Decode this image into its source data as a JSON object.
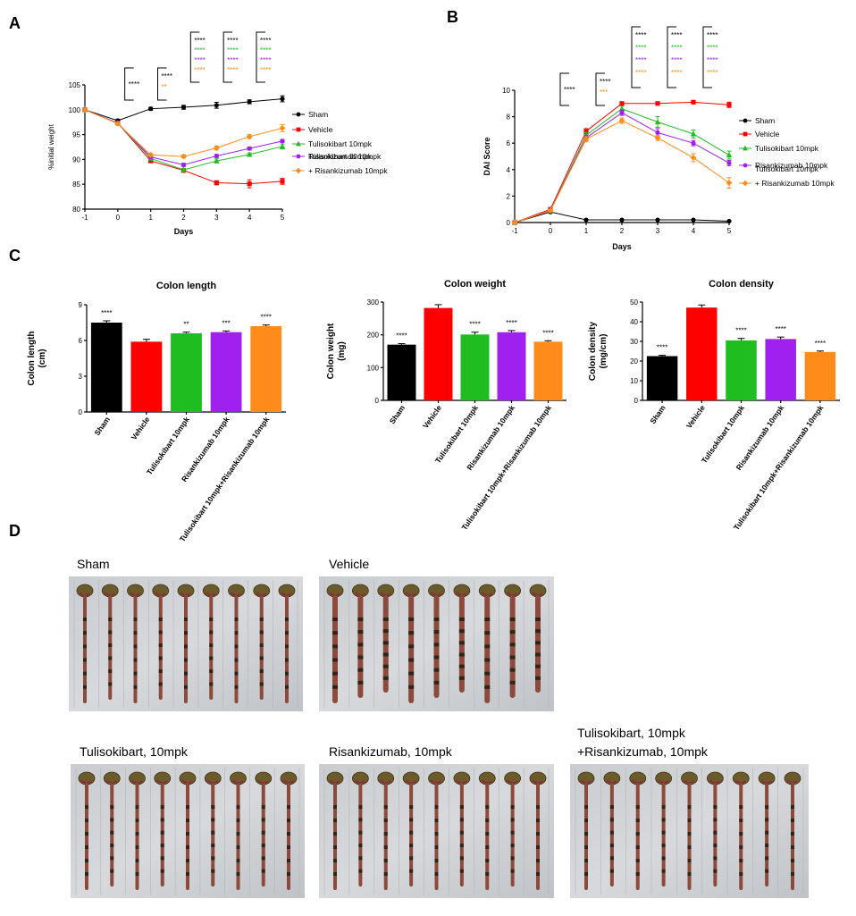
{
  "panels": {
    "a": "A",
    "b": "B",
    "c": "C",
    "d": "D"
  },
  "colors": {
    "sham": "#000000",
    "vehicle": "#ff0000",
    "tulisokibart": "#1fbd1f",
    "risankizumab": "#a020f0",
    "combo": "#ff8c1a"
  },
  "chart_data": [
    {
      "id": "A",
      "type": "line",
      "title": "",
      "xlabel": "Days",
      "ylabel": "%initial weight",
      "x": [
        -1,
        0,
        1,
        2,
        3,
        4,
        5
      ],
      "xlim": [
        -1,
        5
      ],
      "ylim": [
        80,
        105
      ],
      "yticks": [
        80,
        85,
        90,
        95,
        100,
        105
      ],
      "series": [
        {
          "name": "Sham",
          "color_key": "sham",
          "marker": "circle",
          "x": [
            -1,
            0,
            1,
            2,
            3,
            4,
            5
          ],
          "values": [
            100,
            97.8,
            100.2,
            100.5,
            100.9,
            101.6,
            102.2
          ],
          "err": [
            0,
            0.3,
            0.3,
            0.4,
            0.6,
            0.4,
            0.6
          ]
        },
        {
          "name": "Vehicle",
          "color_key": "vehicle",
          "marker": "square",
          "x": [
            -1,
            0,
            1,
            2,
            3,
            4,
            5
          ],
          "values": [
            100,
            97.3,
            89.7,
            87.8,
            85.3,
            85.1,
            85.6
          ],
          "err": [
            0,
            0.3,
            0.3,
            0.4,
            0.4,
            0.8,
            0.6
          ]
        },
        {
          "name": "Tulisokibart 10mpk",
          "color_key": "tulisokibart",
          "marker": "triangle",
          "x": [
            -1,
            0,
            1,
            2,
            3,
            4,
            5
          ],
          "values": [
            100,
            97.3,
            90.2,
            87.9,
            89.7,
            91.0,
            92.6
          ],
          "err": [
            0,
            0.3,
            0.3,
            0.3,
            0.4,
            0.3,
            0.5
          ]
        },
        {
          "name": "Risankizumab 10mpk",
          "color_key": "risankizumab",
          "marker": "circle",
          "x": [
            -1,
            0,
            1,
            2,
            3,
            4,
            5
          ],
          "values": [
            100,
            97.3,
            90.5,
            88.9,
            90.7,
            92.2,
            93.7
          ],
          "err": [
            0,
            0.3,
            0.3,
            0.3,
            0.3,
            0.3,
            0.3
          ]
        },
        {
          "name": "Tulisokibart 10mpk\n+ Risankizumab 10mpk",
          "color_key": "combo",
          "marker": "diamond",
          "x": [
            -1,
            0,
            1,
            2,
            3,
            4,
            5
          ],
          "values": [
            100,
            97.2,
            90.9,
            90.6,
            92.3,
            94.6,
            96.3
          ],
          "err": [
            0,
            0.3,
            0.3,
            0.3,
            0.4,
            0.4,
            0.7
          ]
        }
      ],
      "significance": [
        {
          "day": 1,
          "labels": [
            {
              "text": "****",
              "color_key": "sham"
            }
          ]
        },
        {
          "day": 2,
          "labels": [
            {
              "text": "****",
              "color_key": "sham"
            },
            {
              "text": "**",
              "color_key": "combo"
            }
          ]
        },
        {
          "day": 3,
          "labels": [
            {
              "text": "****",
              "color_key": "sham"
            },
            {
              "text": "****",
              "color_key": "tulisokibart"
            },
            {
              "text": "****",
              "color_key": "risankizumab"
            },
            {
              "text": "****",
              "color_key": "combo"
            }
          ]
        },
        {
          "day": 4,
          "labels": [
            {
              "text": "****",
              "color_key": "sham"
            },
            {
              "text": "****",
              "color_key": "tulisokibart"
            },
            {
              "text": "****",
              "color_key": "risankizumab"
            },
            {
              "text": "****",
              "color_key": "combo"
            }
          ]
        },
        {
          "day": 5,
          "labels": [
            {
              "text": "****",
              "color_key": "sham"
            },
            {
              "text": "****",
              "color_key": "tulisokibart"
            },
            {
              "text": "****",
              "color_key": "risankizumab"
            },
            {
              "text": "****",
              "color_key": "combo"
            }
          ]
        }
      ]
    },
    {
      "id": "B",
      "type": "line",
      "title": "",
      "xlabel": "Days",
      "ylabel": "DAI Score",
      "x": [
        -1,
        0,
        1,
        2,
        3,
        4,
        5
      ],
      "xlim": [
        -1,
        5
      ],
      "ylim": [
        0,
        10
      ],
      "yticks": [
        0,
        2,
        4,
        6,
        8,
        10
      ],
      "series": [
        {
          "name": "Sham",
          "color_key": "sham",
          "marker": "circle",
          "x": [
            -1,
            0,
            1,
            2,
            3,
            4,
            5
          ],
          "values": [
            0,
            0.8,
            0.2,
            0.2,
            0.2,
            0.2,
            0.1
          ],
          "err": [
            0,
            0.1,
            0,
            0,
            0,
            0,
            0
          ]
        },
        {
          "name": "Vehicle",
          "color_key": "vehicle",
          "marker": "square",
          "x": [
            -1,
            0,
            1,
            2,
            3,
            4,
            5
          ],
          "values": [
            0,
            1.0,
            6.9,
            9.0,
            9.0,
            9.1,
            8.9
          ],
          "err": [
            0,
            0.1,
            0.2,
            0.1,
            0.1,
            0.1,
            0.2
          ]
        },
        {
          "name": "Tulisokibart 10mpk",
          "color_key": "tulisokibart",
          "marker": "triangle",
          "x": [
            -1,
            0,
            1,
            2,
            3,
            4,
            5
          ],
          "values": [
            0,
            0.9,
            6.6,
            8.6,
            7.6,
            6.7,
            5.1
          ],
          "err": [
            0,
            0.1,
            0.2,
            0.2,
            0.4,
            0.3,
            0.3
          ]
        },
        {
          "name": "Risankizumab 10mpk",
          "color_key": "risankizumab",
          "marker": "circle",
          "x": [
            -1,
            0,
            1,
            2,
            3,
            4,
            5
          ],
          "values": [
            0,
            0.9,
            6.4,
            8.3,
            6.8,
            6.0,
            4.5
          ],
          "err": [
            0,
            0.1,
            0.2,
            0.2,
            0.3,
            0.2,
            0.2
          ]
        },
        {
          "name": "Tulisokibart 10mpk\n+ Risankizumab 10mpk",
          "color_key": "combo",
          "marker": "diamond",
          "x": [
            -1,
            0,
            1,
            2,
            3,
            4,
            5
          ],
          "values": [
            0,
            0.9,
            6.3,
            7.7,
            6.4,
            4.9,
            3.0
          ],
          "err": [
            0,
            0.1,
            0.2,
            0.2,
            0.2,
            0.3,
            0.4
          ]
        }
      ],
      "significance": [
        {
          "day": 1,
          "labels": [
            {
              "text": "****",
              "color_key": "sham"
            }
          ]
        },
        {
          "day": 2,
          "labels": [
            {
              "text": "****",
              "color_key": "sham"
            },
            {
              "text": "***",
              "color_key": "combo"
            }
          ]
        },
        {
          "day": 3,
          "labels": [
            {
              "text": "****",
              "color_key": "sham"
            },
            {
              "text": "****",
              "color_key": "tulisokibart"
            },
            {
              "text": "****",
              "color_key": "risankizumab"
            },
            {
              "text": "****",
              "color_key": "combo"
            }
          ]
        },
        {
          "day": 4,
          "labels": [
            {
              "text": "****",
              "color_key": "sham"
            },
            {
              "text": "****",
              "color_key": "tulisokibart"
            },
            {
              "text": "****",
              "color_key": "risankizumab"
            },
            {
              "text": "****",
              "color_key": "combo"
            }
          ]
        },
        {
          "day": 5,
          "labels": [
            {
              "text": "****",
              "color_key": "sham"
            },
            {
              "text": "****",
              "color_key": "tulisokibart"
            },
            {
              "text": "****",
              "color_key": "risankizumab"
            },
            {
              "text": "****",
              "color_key": "combo"
            }
          ]
        }
      ]
    },
    {
      "id": "C1",
      "type": "bar",
      "title": "Colon length",
      "ylabel": "Colon length\n(cm)",
      "ylim": [
        0,
        9
      ],
      "yticks": [
        0,
        3,
        6,
        9
      ],
      "categories": [
        "Sham",
        "Vehicle",
        "Tulisokibart 10mpk",
        "Risankizumab 10mpk",
        "Tulisokibart 10mpk+Risankizumab 10mpk"
      ],
      "values": [
        7.5,
        5.9,
        6.6,
        6.7,
        7.2
      ],
      "err": [
        0.15,
        0.2,
        0.1,
        0.1,
        0.1
      ],
      "color_keys": [
        "sham",
        "vehicle",
        "tulisokibart",
        "risankizumab",
        "combo"
      ],
      "significance": [
        "****",
        "",
        "**",
        "***",
        "****"
      ]
    },
    {
      "id": "C2",
      "type": "bar",
      "title": "Colon weight",
      "ylabel": "Colon weight\n(mg)",
      "ylim": [
        0,
        300
      ],
      "yticks": [
        0,
        100,
        200,
        300
      ],
      "categories": [
        "Sham",
        "Vehicle",
        "Tulisokibart 10mpk",
        "Risankizumab 10mpk",
        "Tulisokibart 10mpk+Risankizumab 10mpk"
      ],
      "values": [
        170,
        282,
        201,
        208,
        179
      ],
      "err": [
        3,
        10,
        7,
        5,
        3
      ],
      "color_keys": [
        "sham",
        "vehicle",
        "tulisokibart",
        "risankizumab",
        "combo"
      ],
      "significance": [
        "****",
        "",
        "****",
        "****",
        "****"
      ]
    },
    {
      "id": "C3",
      "type": "bar",
      "title": "Colon density",
      "ylabel": "Colon density\n(mg/cm)",
      "ylim": [
        0,
        50
      ],
      "yticks": [
        0,
        10,
        20,
        30,
        40,
        50
      ],
      "categories": [
        "Sham",
        "Vehicle",
        "Tulisokibart 10mpk",
        "Risankizumab 10mpk",
        "Tulisokibart 10mpk+Risankizumab 10mpk"
      ],
      "values": [
        22.5,
        47.2,
        30.5,
        31.2,
        24.6
      ],
      "err": [
        0.4,
        1.3,
        1.0,
        1.0,
        0.5
      ],
      "color_keys": [
        "sham",
        "vehicle",
        "tulisokibart",
        "risankizumab",
        "combo"
      ],
      "significance": [
        "****",
        "",
        "****",
        "****",
        "****"
      ]
    }
  ],
  "photos": [
    {
      "label": "Sham",
      "count": 9,
      "swollen": false
    },
    {
      "label": "Vehicle",
      "count": 9,
      "swollen": true
    },
    {
      "label": "Tulisokibart, 10mpk",
      "count": 9,
      "swollen": false
    },
    {
      "label": "Risankizumab, 10mpk",
      "count": 9,
      "swollen": false
    },
    {
      "label": "Tulisokibart, 10mpk\n+Risankizumab, 10mpk",
      "count": 9,
      "swollen": false
    }
  ]
}
